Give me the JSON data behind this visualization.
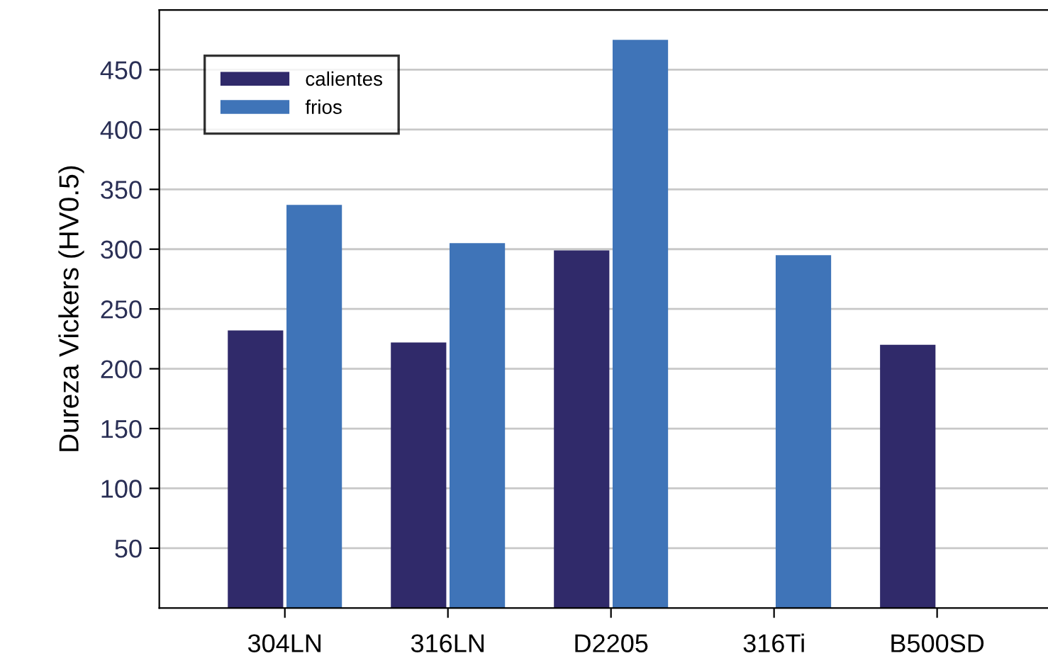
{
  "chart_data": {
    "type": "bar",
    "ylabel": "Dureza Vickers (HV0.5)",
    "categories": [
      "304LN",
      "316LN",
      "D2205",
      "316Ti",
      "B500SD"
    ],
    "series": [
      {
        "name": "calientes",
        "color": "#302a6a",
        "values": [
          232,
          222,
          299,
          null,
          220
        ]
      },
      {
        "name": "frios",
        "color": "#3f74b8",
        "values": [
          337,
          305,
          475,
          295,
          null
        ]
      }
    ],
    "ylim": [
      0,
      500
    ],
    "yticks": [
      50,
      100,
      150,
      200,
      250,
      300,
      350,
      400,
      450
    ],
    "grid": "y",
    "legend": "top left"
  }
}
